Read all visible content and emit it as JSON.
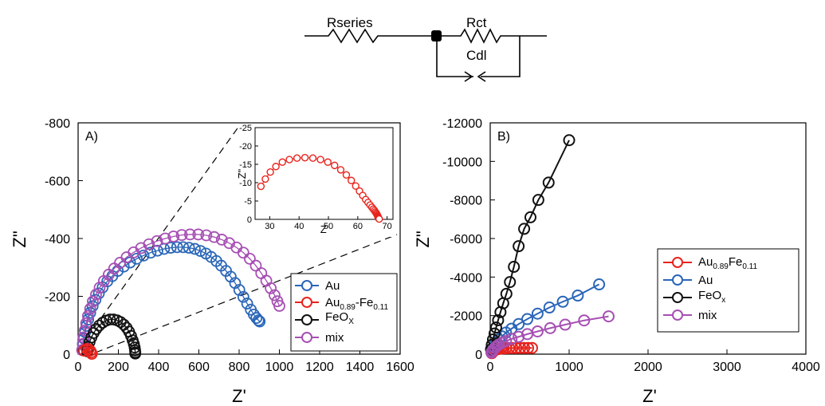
{
  "circuit": {
    "labels": {
      "rseries": "Rseries",
      "rct": "Rct",
      "cdl": "Cdl"
    }
  },
  "colors": {
    "Au": "#2a66b8",
    "AuFe": "#e8231d",
    "FeOx": "#111111",
    "mix": "#a64fb3"
  },
  "chart_data": [
    {
      "type": "scatter",
      "panel_label": "A)",
      "xlabel": "Z'",
      "ylabel": "Z\"",
      "xlim": [
        0,
        1600
      ],
      "ylim": [
        0,
        -800
      ],
      "xticks": [
        "0",
        "200",
        "400",
        "600",
        "800",
        "1000",
        "1200",
        "1400",
        "1600"
      ],
      "yticks": [
        "0",
        "-200",
        "-400",
        "-600",
        "-800"
      ],
      "legend_position": "bottom-right",
      "series": [
        {
          "key": "Au",
          "name": "Au",
          "sub": "",
          "color_key": "Au",
          "x": [
            22,
            25,
            29,
            35,
            42,
            50,
            60,
            72,
            86,
            103,
            122,
            145,
            170,
            197,
            227,
            258,
            291,
            325,
            360,
            394,
            427,
            460,
            492,
            522,
            551,
            580,
            608,
            635,
            661,
            687,
            711,
            735,
            758,
            780,
            801,
            821,
            840,
            858,
            873,
            886,
            896,
            902
          ],
          "y": [
            -14,
            -33,
            -54,
            -76,
            -98,
            -120,
            -143,
            -166,
            -188,
            -210,
            -231,
            -252,
            -270,
            -288,
            -303,
            -317,
            -330,
            -341,
            -351,
            -358,
            -364,
            -368,
            -370,
            -370,
            -368,
            -364,
            -357,
            -348,
            -336,
            -322,
            -306,
            -288,
            -268,
            -246,
            -222,
            -198,
            -175,
            -154,
            -137,
            -125,
            -117,
            -113
          ]
        },
        {
          "key": "mix",
          "name": "mix",
          "sub": "",
          "color_key": "mix",
          "x": [
            20,
            23,
            27,
            33,
            40,
            49,
            60,
            73,
            89,
            107,
            128,
            152,
            179,
            208,
            241,
            276,
            313,
            352,
            392,
            433,
            474,
            515,
            556,
            597,
            637,
            676,
            714,
            751,
            787,
            821,
            853,
            883,
            910,
            935,
            957,
            976,
            990,
            1000
          ],
          "y": [
            -14,
            -35,
            -58,
            -82,
            -107,
            -132,
            -157,
            -182,
            -206,
            -230,
            -253,
            -275,
            -296,
            -316,
            -335,
            -352,
            -367,
            -380,
            -391,
            -400,
            -407,
            -412,
            -414,
            -414,
            -411,
            -405,
            -396,
            -384,
            -369,
            -351,
            -330,
            -306,
            -280,
            -254,
            -228,
            -204,
            -183,
            -167
          ]
        },
        {
          "key": "FeOx",
          "name": "FeO",
          "sub": "X",
          "color_key": "FeOx",
          "x": [
            45,
            50,
            57,
            66,
            77,
            90,
            105,
            122,
            140,
            158,
            176,
            194,
            211,
            227,
            241,
            253,
            263,
            271,
            277,
            281,
            283,
            284,
            284
          ],
          "y": [
            -10,
            -25,
            -42,
            -58,
            -73,
            -87,
            -99,
            -109,
            -116,
            -120,
            -120,
            -117,
            -111,
            -102,
            -91,
            -78,
            -63,
            -48,
            -35,
            -23,
            -13,
            -6,
            -2
          ]
        },
        {
          "key": "AuFe",
          "name": "Au",
          "sub": "0.89",
          "suffix": "-Fe",
          "sub2": "0.11",
          "color_key": "AuFe",
          "x": [
            30,
            42,
            52,
            60,
            65,
            68
          ],
          "y": [
            -12,
            -18,
            -17,
            -12,
            -6,
            -1
          ]
        }
      ],
      "inset": {
        "type": "scatter",
        "xlabel": "Z'",
        "ylabel": "Z\"",
        "xlim": [
          25,
          72
        ],
        "ylim": [
          0,
          -25
        ],
        "xticks": [
          "30",
          "40",
          "50",
          "60",
          "70"
        ],
        "yticks": [
          "0",
          "-5",
          "-10",
          "-15",
          "-20",
          "-25"
        ],
        "series": [
          {
            "key": "AuFe",
            "color_key": "AuFe",
            "x": [
              27,
              28.5,
              30.2,
              32.1,
              34.3,
              36.7,
              39.3,
              42,
              44.7,
              47.3,
              49.8,
              52.1,
              54.2,
              56.1,
              57.8,
              59.3,
              60.6,
              61.7,
              62.7,
              63.5,
              64.2,
              64.8,
              65.3,
              65.7,
              66,
              66.3,
              66.5,
              66.7,
              66.8,
              66.9,
              67,
              67.1,
              67.2,
              67.3
            ],
            "y": [
              -9,
              -11,
              -12.9,
              -14.4,
              -15.6,
              -16.3,
              -16.7,
              -16.8,
              -16.7,
              -16.3,
              -15.6,
              -14.7,
              -13.5,
              -12.1,
              -10.6,
              -9.1,
              -7.7,
              -6.5,
              -5.4,
              -4.6,
              -3.9,
              -3.3,
              -2.8,
              -2.4,
              -2,
              -1.7,
              -1.4,
              -1.1,
              -0.9,
              -0.7,
              -0.5,
              -0.3,
              -0.2,
              -0.1
            ]
          }
        ]
      }
    },
    {
      "type": "line",
      "panel_label": "B)",
      "xlabel": "Z'",
      "ylabel": "Z\"",
      "xlim": [
        0,
        4000
      ],
      "ylim": [
        0,
        -12000
      ],
      "xticks": [
        "0",
        "1000",
        "2000",
        "3000",
        "4000"
      ],
      "yticks": [
        "0",
        "-2000",
        "-4000",
        "-6000",
        "-8000",
        "-10000",
        "-12000"
      ],
      "legend_position": "center-right",
      "series": [
        {
          "key": "AuFe",
          "name": "Au",
          "sub": "0.89",
          "suffix": "Fe",
          "sub2": "0.11",
          "color_key": "AuFe",
          "x": [
            20,
            30,
            40,
            55,
            70,
            90,
            110,
            140,
            170,
            200,
            240,
            280,
            330,
            380,
            430,
            480,
            530
          ],
          "y": [
            -50,
            -110,
            -160,
            -200,
            -230,
            -255,
            -275,
            -290,
            -300,
            -308,
            -313,
            -316,
            -318,
            -320,
            -321,
            -322,
            -323
          ]
        },
        {
          "key": "Au",
          "name": "Au",
          "sub": "",
          "color_key": "Au",
          "x": [
            20,
            30,
            45,
            60,
            80,
            110,
            150,
            200,
            270,
            360,
            470,
            600,
            750,
            920,
            1110,
            1380
          ],
          "y": [
            -150,
            -250,
            -370,
            -480,
            -600,
            -760,
            -920,
            -1120,
            -1320,
            -1560,
            -1820,
            -2100,
            -2420,
            -2720,
            -3040,
            -3620
          ]
        },
        {
          "key": "FeOx",
          "name": "FeO",
          "sub": "x",
          "color_key": "FeOx",
          "x": [
            10,
            20,
            35,
            55,
            75,
            100,
            130,
            165,
            205,
            250,
            300,
            360,
            430,
            510,
            610,
            740,
            1000
          ],
          "y": [
            -250,
            -480,
            -760,
            -1070,
            -1380,
            -1760,
            -2180,
            -2640,
            -3130,
            -3740,
            -4530,
            -5600,
            -6500,
            -7100,
            -8000,
            -8900,
            -11100
          ]
        },
        {
          "key": "mix",
          "name": "mix",
          "sub": "",
          "color_key": "mix",
          "x": [
            15,
            25,
            40,
            60,
            80,
            110,
            150,
            200,
            270,
            360,
            470,
            600,
            760,
            950,
            1190,
            1500
          ],
          "y": [
            -80,
            -150,
            -240,
            -330,
            -410,
            -500,
            -590,
            -680,
            -790,
            -900,
            -1040,
            -1180,
            -1350,
            -1530,
            -1750,
            -1960
          ]
        }
      ]
    }
  ]
}
